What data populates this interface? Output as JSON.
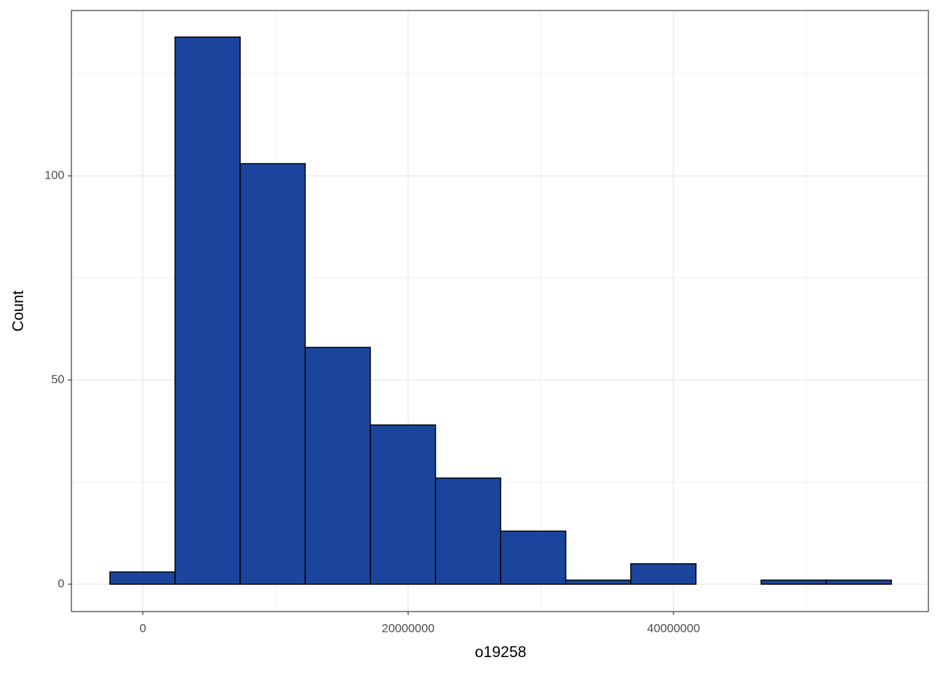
{
  "chart_data": {
    "type": "histogram",
    "x_label": "o19258",
    "y_label": "Count",
    "bins": [
      -2480000,
      2430000,
      7340000,
      12240000,
      17150000,
      22060000,
      26970000,
      31880000,
      36780000,
      41690000,
      46600000,
      51510000,
      56420000
    ],
    "counts": [
      3,
      134,
      103,
      58,
      39,
      26,
      13,
      1,
      5,
      0,
      1,
      1
    ],
    "color": "#1b449c",
    "edge_color": "#000000",
    "xlim": [
      -5380000,
      59210000
    ],
    "ylim": [
      -6.7,
      140.5
    ],
    "xticks": [
      0,
      20000000,
      40000000
    ],
    "yticks": [
      0,
      50,
      100
    ],
    "xminor": [
      10000000,
      30000000,
      50000000
    ],
    "yminor": [
      25,
      75,
      125
    ],
    "grid": true
  }
}
